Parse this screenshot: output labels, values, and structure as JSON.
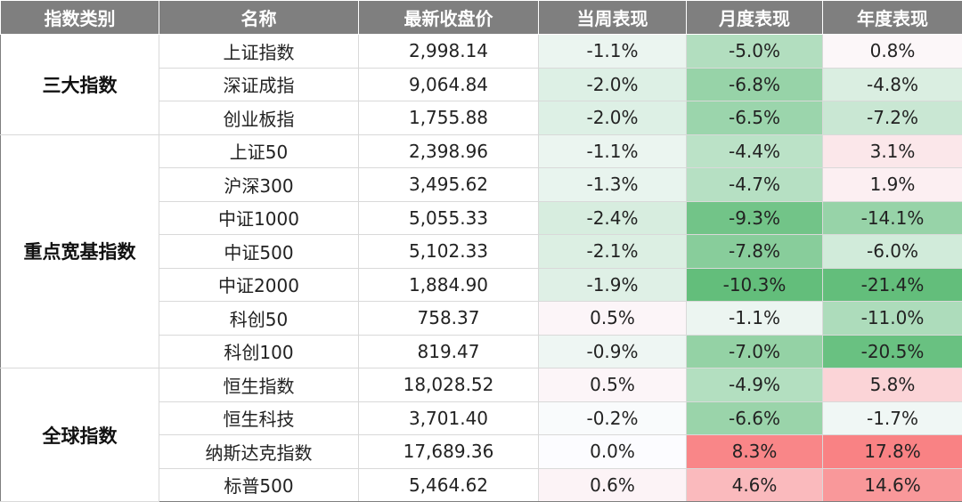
{
  "headers": [
    "指数类别",
    "名称",
    "最新收盘价",
    "当周表现",
    "月度表现",
    "年度表现"
  ],
  "groups": [
    {
      "name": "三大指数",
      "rows": [
        {
          "name": "上证指数",
          "close": "2,998.14",
          "week": "-1.1%",
          "month": "-5.0%",
          "year": "0.8%"
        },
        {
          "name": "深证成指",
          "close": "9,064.84",
          "week": "-2.0%",
          "month": "-6.8%",
          "year": "-4.8%"
        },
        {
          "name": "创业板指",
          "close": "1,755.88",
          "week": "-2.0%",
          "month": "-6.5%",
          "year": "-7.2%"
        }
      ]
    },
    {
      "name": "重点宽基指数",
      "rows": [
        {
          "name": "上证50",
          "close": "2,398.96",
          "week": "-1.1%",
          "month": "-4.4%",
          "year": "3.1%"
        },
        {
          "name": "沪深300",
          "close": "3,495.62",
          "week": "-1.3%",
          "month": "-4.7%",
          "year": "1.9%"
        },
        {
          "name": "中证1000",
          "close": "5,055.33",
          "week": "-2.4%",
          "month": "-9.3%",
          "year": "-14.1%"
        },
        {
          "name": "中证500",
          "close": "5,102.33",
          "week": "-2.1%",
          "month": "-7.8%",
          "year": "-6.0%"
        },
        {
          "name": "中证2000",
          "close": "1,884.90",
          "week": "-1.9%",
          "month": "-10.3%",
          "year": "-21.4%"
        },
        {
          "name": "科创50",
          "close": "758.37",
          "week": "0.5%",
          "month": "-1.1%",
          "year": "-11.0%"
        },
        {
          "name": "科创100",
          "close": "819.47",
          "week": "-0.9%",
          "month": "-7.0%",
          "year": "-20.5%"
        }
      ]
    },
    {
      "name": "全球指数",
      "rows": [
        {
          "name": "恒生指数",
          "close": "18,028.52",
          "week": "0.5%",
          "month": "-4.9%",
          "year": "5.8%"
        },
        {
          "name": "恒生科技",
          "close": "3,701.40",
          "week": "-0.2%",
          "month": "-6.6%",
          "year": "-1.7%"
        },
        {
          "name": "纳斯达克指数",
          "close": "17,689.36",
          "week": "0.0%",
          "month": "8.3%",
          "year": "17.8%"
        },
        {
          "name": "标普500",
          "close": "5,464.62",
          "week": "0.6%",
          "month": "4.6%",
          "year": "14.6%"
        }
      ]
    }
  ],
  "colors": {
    "header_bg": "#7f7f7f",
    "positive_max": "#f8696b",
    "negative_max": "#63be7b",
    "neutral": "#fcfcff"
  }
}
